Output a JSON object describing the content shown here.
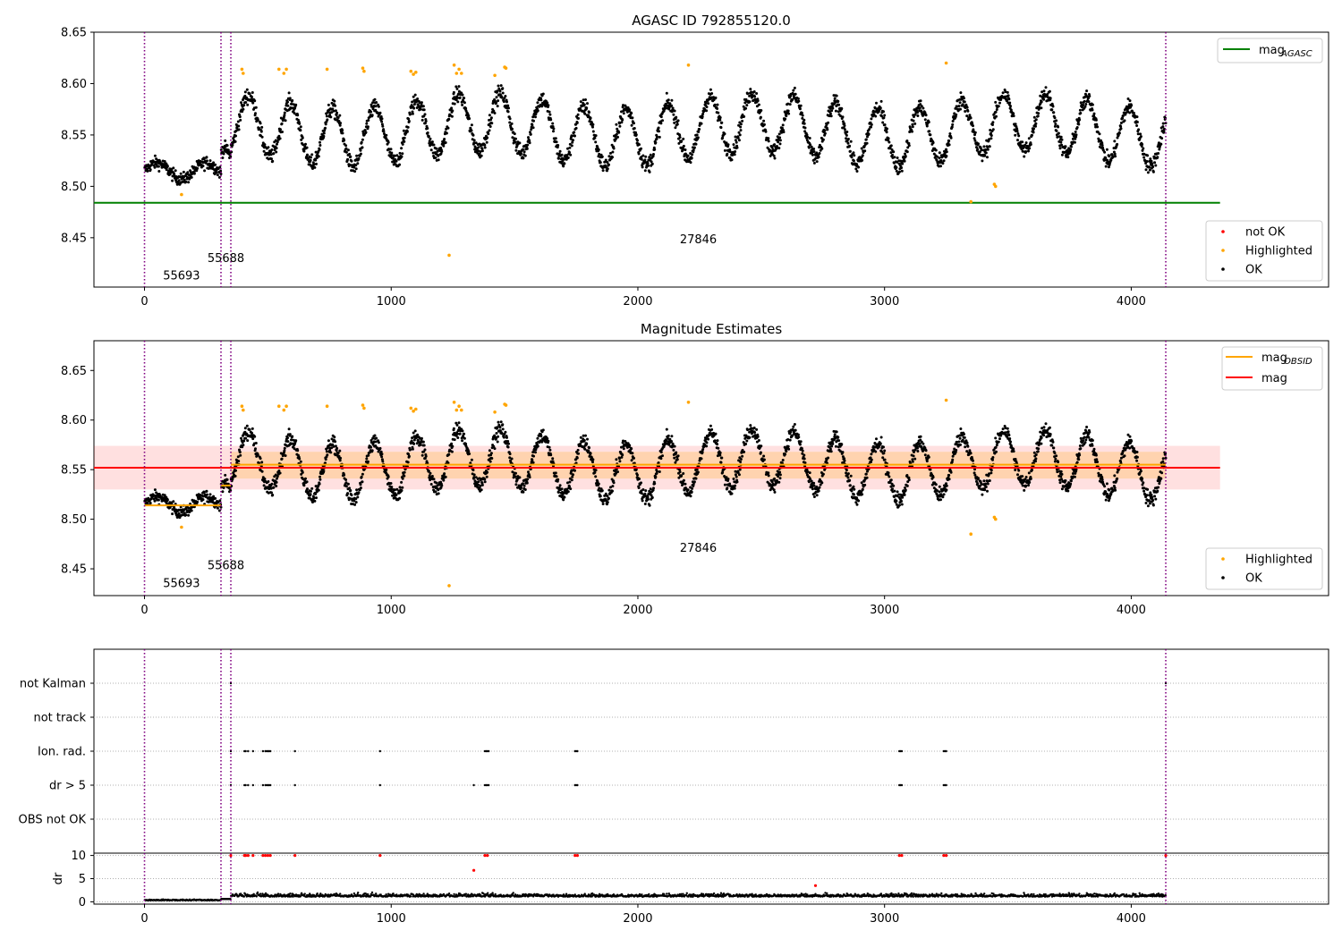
{
  "chart_data": [
    {
      "type": "scatter",
      "title": "AGASC ID 792855120.0",
      "xlim": [
        -205,
        4800
      ],
      "ylim": [
        8.402,
        8.65
      ],
      "x_ticks": [
        0,
        1000,
        2000,
        3000,
        4000
      ],
      "y_ticks": [
        8.45,
        8.5,
        8.55,
        8.6,
        8.65
      ],
      "vlines": [
        0,
        310,
        350,
        4140
      ],
      "obsid_labels": [
        {
          "text": "55693",
          "x": 150,
          "y": 8.413
        },
        {
          "text": "55688",
          "x": 330,
          "y": 8.43
        },
        {
          "text": "27846",
          "x": 2245,
          "y": 8.448
        }
      ],
      "hlines": [
        {
          "name": "mag_AGASC",
          "y": 8.484,
          "x0": -205,
          "x1": 4360,
          "color": "#008000"
        }
      ],
      "legend_lines": [
        {
          "label": "mag",
          "sub": "AGASC",
          "color": "#008000"
        }
      ],
      "legend_points": [
        {
          "label": "not OK",
          "color": "#ff0000"
        },
        {
          "label": "Highlighted",
          "color": "#ffa500"
        },
        {
          "label": "OK",
          "color": "#000000"
        }
      ],
      "light_curve": [
        {
          "x0": 0,
          "x1": 310,
          "base": 8.515,
          "amp": 0.008,
          "period": 200,
          "noise": 0.006
        },
        {
          "x0": 310,
          "x1": 350,
          "base": 8.533,
          "amp": 0.004,
          "period": 60,
          "noise": 0.006
        },
        {
          "x0": 350,
          "x1": 4140,
          "base": 8.555,
          "amp": 0.028,
          "period": 170,
          "noise": 0.008
        }
      ],
      "highlighted_points": [
        [
          150,
          8.492
        ],
        [
          395,
          8.614
        ],
        [
          400,
          8.61
        ],
        [
          545,
          8.614
        ],
        [
          565,
          8.61
        ],
        [
          575,
          8.614
        ],
        [
          740,
          8.614
        ],
        [
          885,
          8.615
        ],
        [
          890,
          8.612
        ],
        [
          1080,
          8.612
        ],
        [
          1090,
          8.609
        ],
        [
          1100,
          8.611
        ],
        [
          1235,
          8.433
        ],
        [
          1255,
          8.618
        ],
        [
          1265,
          8.61
        ],
        [
          1275,
          8.614
        ],
        [
          1285,
          8.61
        ],
        [
          1420,
          8.608
        ],
        [
          1460,
          8.616
        ],
        [
          1465,
          8.615
        ],
        [
          2205,
          8.618
        ],
        [
          3250,
          8.62
        ],
        [
          3350,
          8.485
        ],
        [
          3445,
          8.502
        ],
        [
          3450,
          8.5
        ]
      ]
    },
    {
      "type": "scatter",
      "title": "Magnitude Estimates",
      "xlim": [
        -205,
        4800
      ],
      "ylim": [
        8.423,
        8.68
      ],
      "x_ticks": [
        0,
        1000,
        2000,
        3000,
        4000
      ],
      "y_ticks": [
        8.45,
        8.5,
        8.55,
        8.6,
        8.65
      ],
      "vlines": [
        0,
        310,
        350,
        4140
      ],
      "obsid_labels": [
        {
          "text": "55693",
          "x": 150,
          "y": 8.435
        },
        {
          "text": "55688",
          "x": 330,
          "y": 8.453
        },
        {
          "text": "27846",
          "x": 2245,
          "y": 8.471
        }
      ],
      "bands": [
        {
          "y0": 8.53,
          "y1": 8.574,
          "x0": -205,
          "x1": 4360,
          "color": "#ff0000",
          "opacity": 0.12
        },
        {
          "y0": 8.541,
          "y1": 8.568,
          "x0": 350,
          "x1": 4140,
          "color": "#ffa500",
          "opacity": 0.22
        }
      ],
      "hlines": [
        {
          "name": "mag_OBSID 55693",
          "y": 8.514,
          "x0": 0,
          "x1": 310,
          "color": "#ffa500"
        },
        {
          "name": "mag_OBSID 55688",
          "y": 8.534,
          "x0": 310,
          "x1": 350,
          "color": "#ffa500"
        },
        {
          "name": "mag_OBSID 27846",
          "y": 8.555,
          "x0": 350,
          "x1": 4140,
          "color": "#ffa500"
        },
        {
          "name": "mag",
          "y": 8.552,
          "x0": -205,
          "x1": 4360,
          "color": "#ff0000"
        }
      ],
      "legend_lines": [
        {
          "label": "mag",
          "sub": "OBSID",
          "color": "#ffa500"
        },
        {
          "label": "mag",
          "sub": "",
          "color": "#ff0000"
        }
      ],
      "legend_points": [
        {
          "label": "Highlighted",
          "color": "#ffa500"
        },
        {
          "label": "OK",
          "color": "#000000"
        }
      ]
    },
    {
      "type": "scatter",
      "title": "",
      "xlim": [
        -205,
        4800
      ],
      "x_ticks": [
        0,
        1000,
        2000,
        3000,
        4000
      ],
      "vlines": [
        0,
        310,
        350,
        4140
      ],
      "flag_rows": [
        "not Kalman",
        "not track",
        "Ion. rad.",
        "dr > 5",
        "OBS not OK"
      ],
      "flag_points": {
        "not Kalman": [
          350,
          4140
        ],
        "not track": [],
        "Ion. rad.": [
          350,
          405,
          410,
          420,
          440,
          480,
          490,
          495,
          500,
          505,
          510,
          610,
          955,
          1380,
          1385,
          1390,
          1395,
          1745,
          1750,
          1755,
          3060,
          3065,
          3070,
          3240,
          3245,
          3250
        ],
        "dr > 5": [
          350,
          405,
          410,
          420,
          440,
          480,
          490,
          495,
          500,
          505,
          510,
          610,
          955,
          1335,
          1380,
          1385,
          1390,
          1395,
          1745,
          1750,
          1755,
          3060,
          3065,
          3070,
          3240,
          3245,
          3250
        ],
        "OBS not OK": []
      },
      "dr": {
        "ylabel": "dr",
        "ylim": [
          -0.5,
          10.5
        ],
        "y_ticks": [
          0,
          5,
          10
        ],
        "red_points": [
          [
            350,
            10
          ],
          [
            405,
            10
          ],
          [
            410,
            10
          ],
          [
            420,
            10
          ],
          [
            440,
            10
          ],
          [
            480,
            10
          ],
          [
            490,
            10
          ],
          [
            500,
            10
          ],
          [
            510,
            10
          ],
          [
            610,
            10
          ],
          [
            955,
            10
          ],
          [
            1335,
            6.8
          ],
          [
            1380,
            10
          ],
          [
            1390,
            10
          ],
          [
            1745,
            10
          ],
          [
            1755,
            10
          ],
          [
            2720,
            3.5
          ],
          [
            3060,
            10
          ],
          [
            3070,
            10
          ],
          [
            3240,
            10
          ],
          [
            3250,
            10
          ],
          [
            4140,
            10
          ]
        ]
      }
    }
  ]
}
